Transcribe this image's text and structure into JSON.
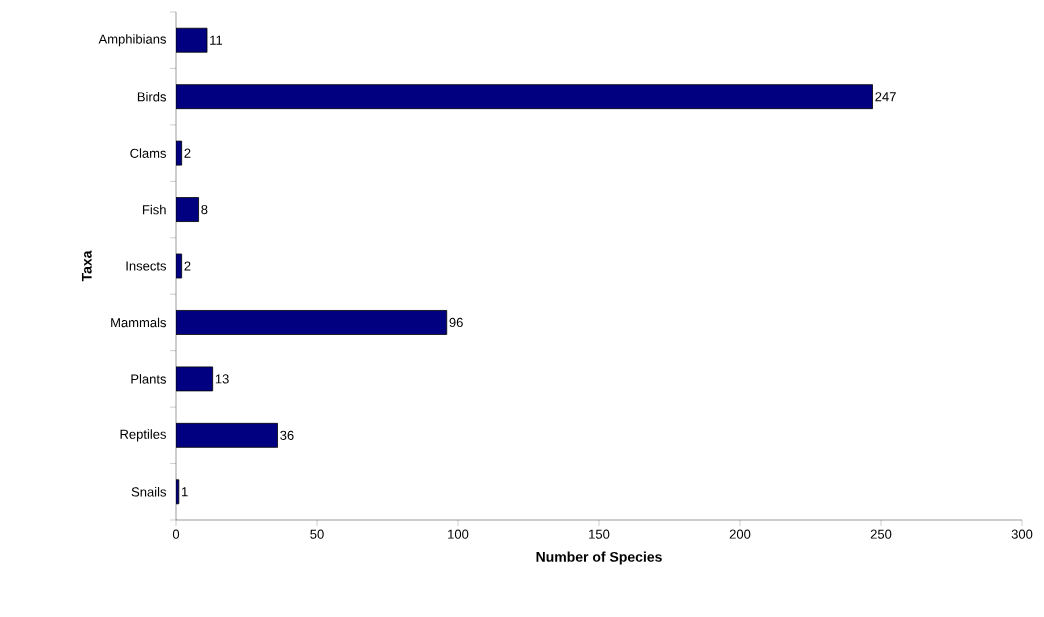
{
  "chart_data": {
    "type": "bar",
    "orientation": "horizontal",
    "categories": [
      "Amphibians",
      "Birds",
      "Clams",
      "Fish",
      "Insects",
      "Mammals",
      "Plants",
      "Reptiles",
      "Snails"
    ],
    "values": [
      11,
      247,
      2,
      8,
      2,
      96,
      13,
      36,
      1
    ],
    "color": "#000080",
    "xlim": [
      0,
      300
    ],
    "xticks": [
      0,
      50,
      100,
      150,
      200,
      250,
      300
    ],
    "xlabel": "Number of Species",
    "ylabel": "Taxa",
    "data_labels": true
  }
}
